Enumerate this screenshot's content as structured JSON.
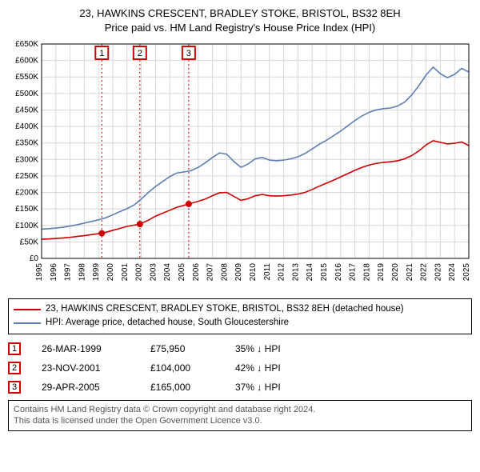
{
  "title_line1": "23, HAWKINS CRESCENT, BRADLEY STOKE, BRISTOL, BS32 8EH",
  "title_line2": "Price paid vs. HM Land Registry's House Price Index (HPI)",
  "chart": {
    "type": "line",
    "background_color": "#ffffff",
    "border_color": "#000000",
    "axis_color": "#000000",
    "grid_color": "#d7d7d7",
    "x_min": 1995,
    "x_max": 2025,
    "x_tick_step": 1,
    "y_min": 0,
    "y_max": 650000,
    "y_tick_step": 50000,
    "y_tick_labels": [
      "£0",
      "£50K",
      "£100K",
      "£150K",
      "£200K",
      "£250K",
      "£300K",
      "£350K",
      "£400K",
      "£450K",
      "£500K",
      "£550K",
      "£600K",
      "£650K"
    ],
    "x_tick_labels": [
      "1995",
      "1996",
      "1997",
      "1998",
      "1999",
      "2000",
      "2001",
      "2002",
      "2003",
      "2004",
      "2005",
      "2006",
      "2007",
      "2008",
      "2009",
      "2010",
      "2011",
      "2012",
      "2013",
      "2014",
      "2015",
      "2016",
      "2017",
      "2018",
      "2019",
      "2020",
      "2021",
      "2022",
      "2023",
      "2024",
      "2025"
    ],
    "vlines": [
      {
        "x": 1999.23,
        "label": "1",
        "color": "#cc0000"
      },
      {
        "x": 2001.9,
        "label": "2",
        "color": "#cc0000"
      },
      {
        "x": 2005.33,
        "label": "3",
        "color": "#cc0000"
      }
    ],
    "series": [
      {
        "name": "property",
        "color": "#cc0000",
        "width": 1.6,
        "points": [
          [
            1995.0,
            58000
          ],
          [
            1995.5,
            59000
          ],
          [
            1996.0,
            60500
          ],
          [
            1996.5,
            62000
          ],
          [
            1997.0,
            64000
          ],
          [
            1997.5,
            66500
          ],
          [
            1998.0,
            69000
          ],
          [
            1998.5,
            72000
          ],
          [
            1999.0,
            75000
          ],
          [
            1999.23,
            75950
          ],
          [
            1999.5,
            79000
          ],
          [
            2000.0,
            85000
          ],
          [
            2000.5,
            91000
          ],
          [
            2001.0,
            97000
          ],
          [
            2001.5,
            101000
          ],
          [
            2001.9,
            104000
          ],
          [
            2002.0,
            106000
          ],
          [
            2002.5,
            116000
          ],
          [
            2003.0,
            128000
          ],
          [
            2003.5,
            137000
          ],
          [
            2004.0,
            146000
          ],
          [
            2004.5,
            155000
          ],
          [
            2005.0,
            161000
          ],
          [
            2005.33,
            165000
          ],
          [
            2005.5,
            167000
          ],
          [
            2006.0,
            173000
          ],
          [
            2006.5,
            180000
          ],
          [
            2007.0,
            190000
          ],
          [
            2007.5,
            199000
          ],
          [
            2008.0,
            200000
          ],
          [
            2008.5,
            188000
          ],
          [
            2009.0,
            176000
          ],
          [
            2009.5,
            181000
          ],
          [
            2010.0,
            190000
          ],
          [
            2010.5,
            194000
          ],
          [
            2011.0,
            190000
          ],
          [
            2011.5,
            189000
          ],
          [
            2012.0,
            190000
          ],
          [
            2012.5,
            192000
          ],
          [
            2013.0,
            195000
          ],
          [
            2013.5,
            200000
          ],
          [
            2014.0,
            209000
          ],
          [
            2014.5,
            219000
          ],
          [
            2015.0,
            228000
          ],
          [
            2015.5,
            237000
          ],
          [
            2016.0,
            247000
          ],
          [
            2016.5,
            257000
          ],
          [
            2017.0,
            267000
          ],
          [
            2017.5,
            276000
          ],
          [
            2018.0,
            283000
          ],
          [
            2018.5,
            288000
          ],
          [
            2019.0,
            291000
          ],
          [
            2019.5,
            293000
          ],
          [
            2020.0,
            296000
          ],
          [
            2020.5,
            302000
          ],
          [
            2021.0,
            312000
          ],
          [
            2021.5,
            326000
          ],
          [
            2022.0,
            344000
          ],
          [
            2022.5,
            357000
          ],
          [
            2023.0,
            352000
          ],
          [
            2023.5,
            347000
          ],
          [
            2024.0,
            349000
          ],
          [
            2024.5,
            353000
          ],
          [
            2025.0,
            342000
          ]
        ]
      },
      {
        "name": "hpi",
        "color": "#5b7fb3",
        "width": 1.6,
        "points": [
          [
            1995.0,
            89000
          ],
          [
            1995.5,
            90000
          ],
          [
            1996.0,
            92000
          ],
          [
            1996.5,
            94500
          ],
          [
            1997.0,
            98000
          ],
          [
            1997.5,
            102000
          ],
          [
            1998.0,
            107000
          ],
          [
            1998.5,
            112000
          ],
          [
            1999.0,
            117000
          ],
          [
            1999.5,
            123000
          ],
          [
            2000.0,
            132000
          ],
          [
            2000.5,
            142000
          ],
          [
            2001.0,
            151000
          ],
          [
            2001.5,
            162000
          ],
          [
            2002.0,
            180000
          ],
          [
            2002.5,
            200000
          ],
          [
            2003.0,
            218000
          ],
          [
            2003.5,
            233000
          ],
          [
            2004.0,
            248000
          ],
          [
            2004.5,
            259000
          ],
          [
            2005.0,
            262000
          ],
          [
            2005.5,
            266000
          ],
          [
            2006.0,
            276000
          ],
          [
            2006.5,
            290000
          ],
          [
            2007.0,
            306000
          ],
          [
            2007.5,
            320000
          ],
          [
            2008.0,
            316000
          ],
          [
            2008.5,
            294000
          ],
          [
            2009.0,
            276000
          ],
          [
            2009.5,
            286000
          ],
          [
            2010.0,
            302000
          ],
          [
            2010.5,
            306000
          ],
          [
            2011.0,
            298000
          ],
          [
            2011.5,
            296000
          ],
          [
            2012.0,
            298000
          ],
          [
            2012.5,
            302000
          ],
          [
            2013.0,
            308000
          ],
          [
            2013.5,
            318000
          ],
          [
            2014.0,
            332000
          ],
          [
            2014.5,
            346000
          ],
          [
            2015.0,
            358000
          ],
          [
            2015.5,
            372000
          ],
          [
            2016.0,
            386000
          ],
          [
            2016.5,
            402000
          ],
          [
            2017.0,
            418000
          ],
          [
            2017.5,
            432000
          ],
          [
            2018.0,
            443000
          ],
          [
            2018.5,
            450000
          ],
          [
            2019.0,
            454000
          ],
          [
            2019.5,
            456000
          ],
          [
            2020.0,
            462000
          ],
          [
            2020.5,
            474000
          ],
          [
            2021.0,
            496000
          ],
          [
            2021.5,
            524000
          ],
          [
            2022.0,
            556000
          ],
          [
            2022.5,
            580000
          ],
          [
            2023.0,
            560000
          ],
          [
            2023.5,
            548000
          ],
          [
            2024.0,
            558000
          ],
          [
            2024.5,
            576000
          ],
          [
            2025.0,
            565000
          ]
        ]
      }
    ],
    "markers": [
      {
        "x": 1999.23,
        "y": 75950,
        "color": "#cc0000"
      },
      {
        "x": 2001.9,
        "y": 104000,
        "color": "#cc0000"
      },
      {
        "x": 2005.33,
        "y": 165000,
        "color": "#cc0000"
      }
    ]
  },
  "legend": {
    "prop_color": "#cc0000",
    "prop_label": "23, HAWKINS CRESCENT, BRADLEY STOKE, BRISTOL, BS32 8EH (detached house)",
    "hpi_color": "#5b7fb3",
    "hpi_label": "HPI: Average price, detached house, South Gloucestershire"
  },
  "transactions": [
    {
      "n": "1",
      "date": "26-MAR-1999",
      "price": "£75,950",
      "pct": "35% ↓ HPI",
      "color": "#cc0000"
    },
    {
      "n": "2",
      "date": "23-NOV-2001",
      "price": "£104,000",
      "pct": "42% ↓ HPI",
      "color": "#cc0000"
    },
    {
      "n": "3",
      "date": "29-APR-2005",
      "price": "£165,000",
      "pct": "37% ↓ HPI",
      "color": "#cc0000"
    }
  ],
  "footer_line1": "Contains HM Land Registry data © Crown copyright and database right 2024.",
  "footer_line2": "This data is licensed under the Open Government Licence v3.0."
}
